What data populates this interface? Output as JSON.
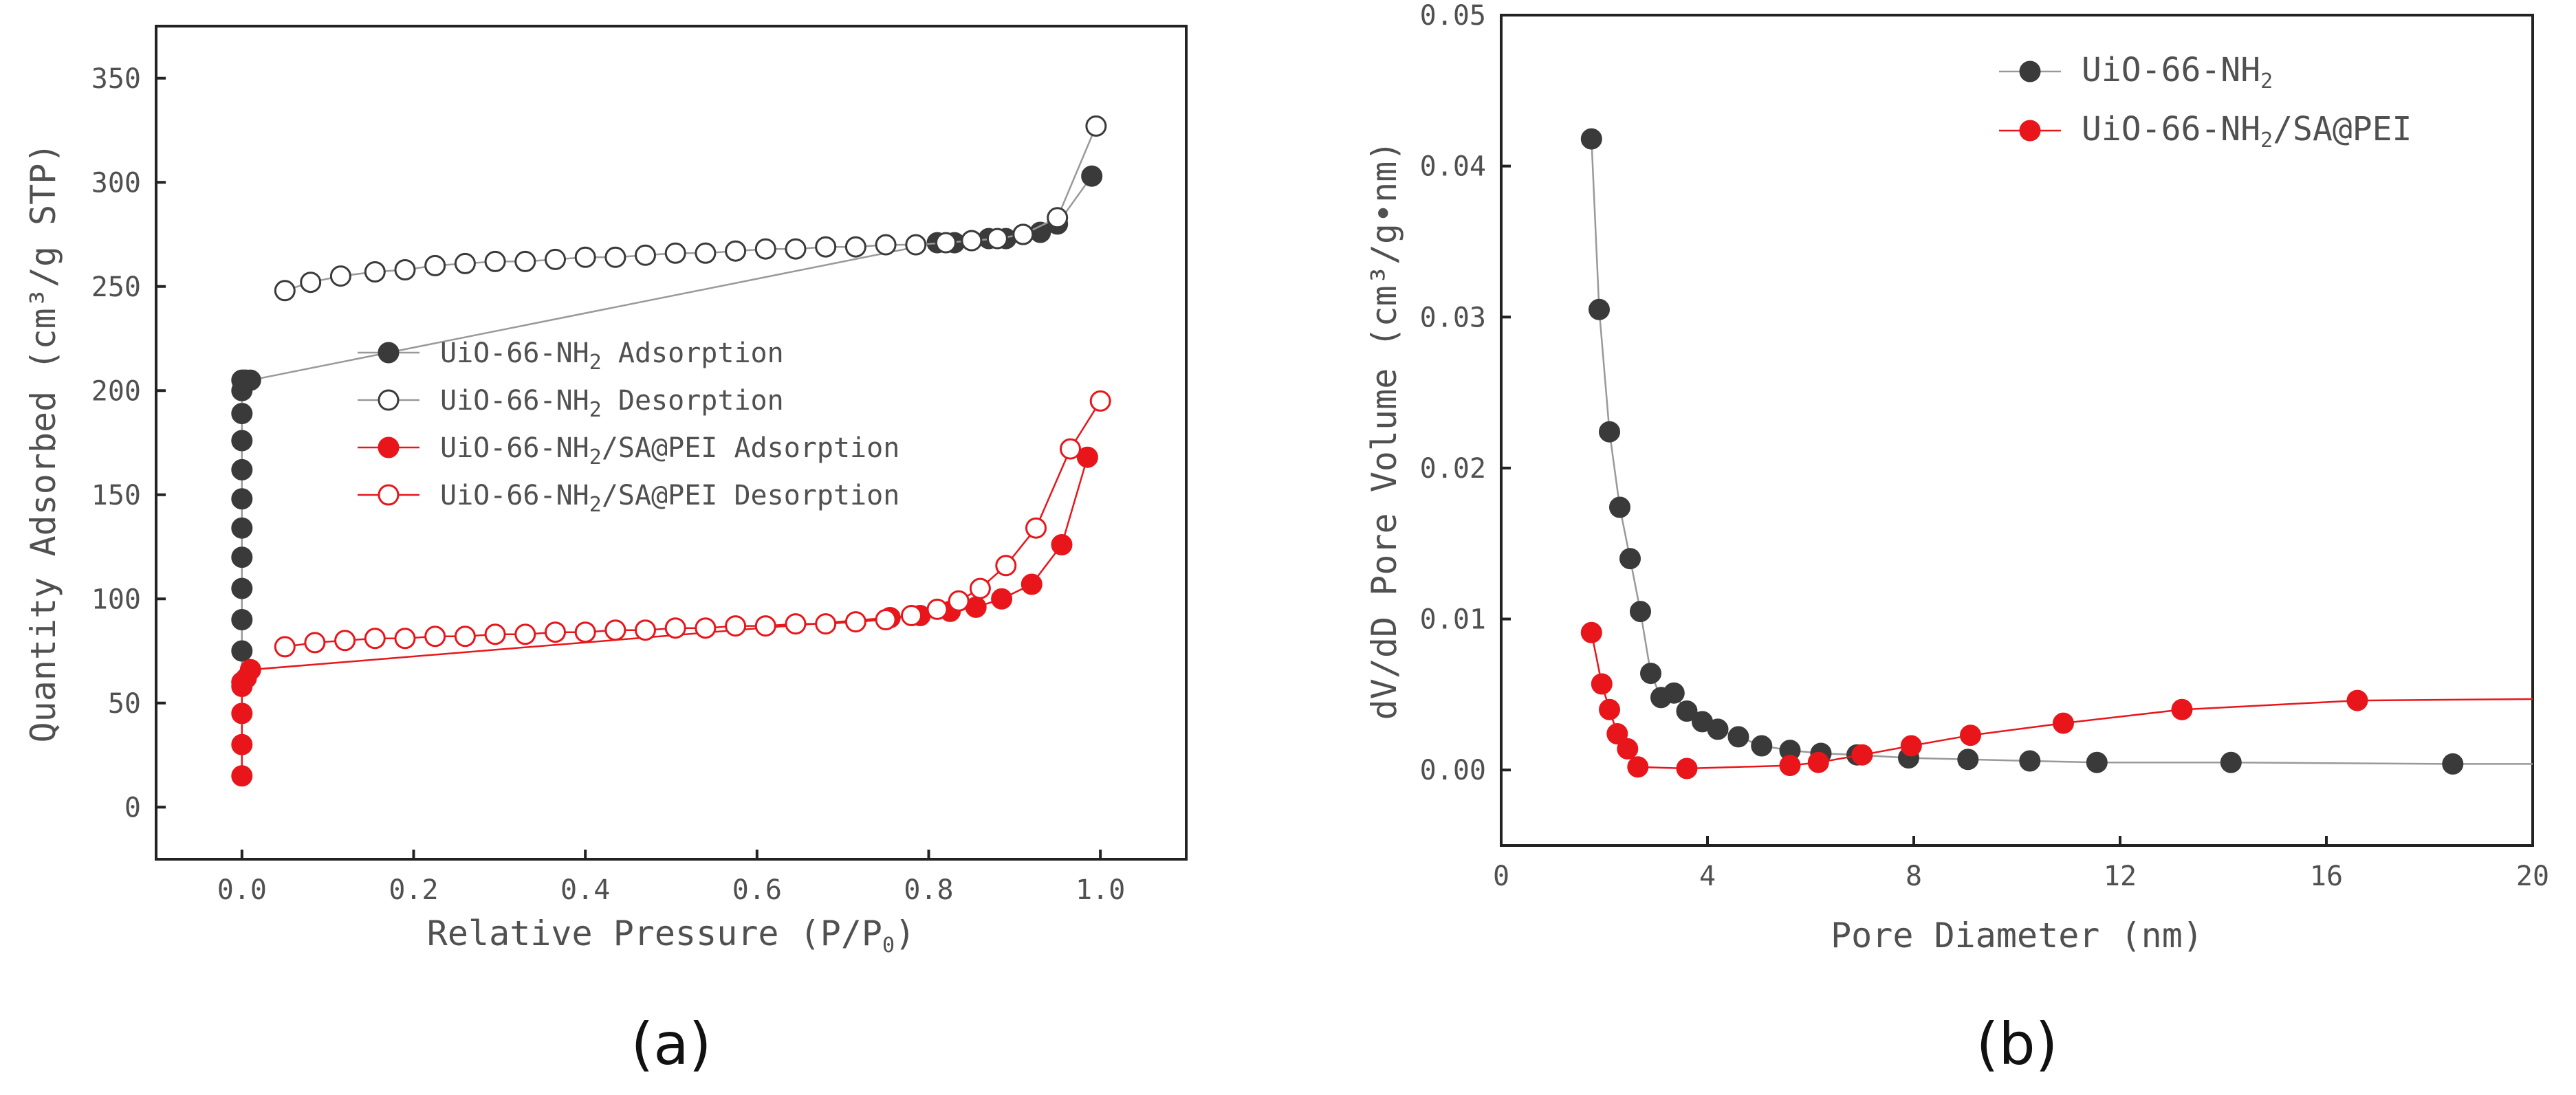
{
  "chart_data": [
    {
      "id": "a",
      "type": "scatter",
      "panel_label": "(a)",
      "xlabel": "Relative Pressure (P/P",
      "xlabel_sub": "0",
      "xlabel_tail": ")",
      "ylabel": "Quantity Adsorbed (cm³/g STP)",
      "xlim": [
        -0.1,
        1.1
      ],
      "ylim": [
        -25,
        375
      ],
      "xticks": [
        0.0,
        0.2,
        0.4,
        0.6,
        0.8,
        1.0
      ],
      "xtick_labels": [
        "0.0",
        "0.2",
        "0.4",
        "0.6",
        "0.8",
        "1.0"
      ],
      "yticks": [
        0,
        50,
        100,
        150,
        200,
        250,
        300,
        350
      ],
      "ytick_labels": [
        "0",
        "50",
        "100",
        "150",
        "200",
        "250",
        "300",
        "350"
      ],
      "legend_position": "center-left",
      "series": [
        {
          "name": "UiO-66-NH",
          "sub": "2",
          "suffix": " Adsorption",
          "marker": "filled",
          "color": "#3a3a3a",
          "line_color": "#999999",
          "x": [
            0.0,
            0.0,
            0.0,
            0.0,
            0.0,
            0.0,
            0.0,
            0.0,
            0.0,
            0.0,
            0.0,
            0.0,
            0.002,
            0.005,
            0.01,
            0.81,
            0.83,
            0.85,
            0.87,
            0.89,
            0.91,
            0.93,
            0.95,
            0.99
          ],
          "y": [
            60,
            75,
            90,
            105,
            120,
            134,
            148,
            162,
            176,
            189,
            200,
            205,
            205,
            205,
            205,
            271,
            271,
            272,
            273,
            273,
            275,
            276,
            280,
            303
          ]
        },
        {
          "name": "UiO-66-NH",
          "sub": "2",
          "suffix": " Desorption",
          "marker": "open",
          "color": "#3a3a3a",
          "line_color": "#999999",
          "x": [
            0.05,
            0.08,
            0.115,
            0.155,
            0.19,
            0.225,
            0.26,
            0.295,
            0.33,
            0.365,
            0.4,
            0.435,
            0.47,
            0.505,
            0.54,
            0.575,
            0.61,
            0.645,
            0.68,
            0.715,
            0.75,
            0.785,
            0.82,
            0.85,
            0.88,
            0.91,
            0.95,
            0.995
          ],
          "y": [
            248,
            252,
            255,
            257,
            258,
            260,
            261,
            262,
            262,
            263,
            264,
            264,
            265,
            266,
            266,
            267,
            268,
            268,
            269,
            269,
            270,
            270,
            271,
            272,
            273,
            275,
            283,
            327
          ]
        },
        {
          "name": "UiO-66-NH",
          "sub": "2",
          "suffix": "/SA@PEI Adsorption",
          "marker": "filled",
          "color": "#e8161a",
          "line_color": "#e8161a",
          "x": [
            0.0,
            0.0,
            0.0,
            0.0,
            0.0,
            0.005,
            0.01,
            0.755,
            0.79,
            0.825,
            0.855,
            0.885,
            0.92,
            0.955,
            0.985
          ],
          "y": [
            15,
            30,
            45,
            58,
            60,
            62,
            66,
            91,
            92,
            94,
            96,
            100,
            107,
            126,
            168
          ]
        },
        {
          "name": "UiO-66-NH",
          "sub": "2",
          "suffix": "/SA@PEI Desorption",
          "marker": "open",
          "color": "#e8161a",
          "line_color": "#e8161a",
          "x": [
            0.05,
            0.085,
            0.12,
            0.155,
            0.19,
            0.225,
            0.26,
            0.295,
            0.33,
            0.365,
            0.4,
            0.435,
            0.47,
            0.505,
            0.54,
            0.575,
            0.61,
            0.645,
            0.68,
            0.715,
            0.75,
            0.78,
            0.81,
            0.835,
            0.86,
            0.89,
            0.925,
            0.965,
            1.0
          ],
          "y": [
            77,
            79,
            80,
            81,
            81,
            82,
            82,
            83,
            83,
            84,
            84,
            85,
            85,
            86,
            86,
            87,
            87,
            88,
            88,
            89,
            90,
            92,
            95,
            99,
            105,
            116,
            134,
            172,
            195
          ]
        }
      ]
    },
    {
      "id": "b",
      "type": "scatter",
      "panel_label": "(b)",
      "xlabel": "Pore Diameter (nm)",
      "ylabel": "dV/dD Pore Volume (cm³/g•nm)",
      "xlim": [
        0,
        20
      ],
      "ylim": [
        -0.005,
        0.05
      ],
      "xticks": [
        0,
        4,
        8,
        12,
        16,
        20
      ],
      "xtick_labels": [
        "0",
        "4",
        "8",
        "12",
        "16",
        "20"
      ],
      "yticks": [
        0.0,
        0.01,
        0.02,
        0.03,
        0.04,
        0.05
      ],
      "ytick_labels": [
        "0.00",
        "0.01",
        "0.02",
        "0.03",
        "0.04",
        "0.05"
      ],
      "legend_position": "top-right",
      "series": [
        {
          "name": "UiO-66-NH",
          "sub": "2",
          "suffix": "",
          "marker": "filled",
          "color": "#3a3a3a",
          "line_color": "#999999",
          "x": [
            1.75,
            1.9,
            2.1,
            2.3,
            2.5,
            2.7,
            2.9,
            3.1,
            3.35,
            3.6,
            3.9,
            4.2,
            4.6,
            5.05,
            5.6,
            6.2,
            6.9,
            7.9,
            9.05,
            10.25,
            11.55,
            14.15,
            18.45,
            20
          ],
          "y": [
            0.0418,
            0.0305,
            0.0224,
            0.0174,
            0.014,
            0.0105,
            0.0064,
            0.0048,
            0.0051,
            0.0039,
            0.0032,
            0.0027,
            0.0022,
            0.0016,
            0.0013,
            0.0011,
            0.001,
            0.0008,
            0.0007,
            0.0006,
            0.0005,
            0.0005,
            0.0004,
            0.0004
          ]
        },
        {
          "name": "UiO-66-NH",
          "sub": "2",
          "suffix": "/SA@PEI",
          "marker": "filled",
          "color": "#e8161a",
          "line_color": "#e8161a",
          "x": [
            1.75,
            1.95,
            2.1,
            2.25,
            2.45,
            2.65,
            3.6,
            5.6,
            6.15,
            7.0,
            7.95,
            9.1,
            10.9,
            13.2,
            16.6,
            20
          ],
          "y": [
            0.0091,
            0.0057,
            0.004,
            0.0024,
            0.0014,
            0.0002,
            0.0001,
            0.0003,
            0.0005,
            0.001,
            0.0016,
            0.0023,
            0.0031,
            0.004,
            0.0046,
            0.0047
          ]
        }
      ]
    }
  ]
}
